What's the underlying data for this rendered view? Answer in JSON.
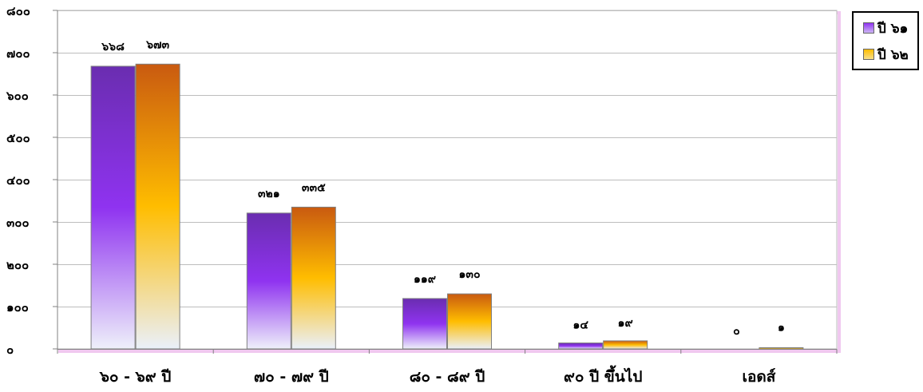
{
  "chart_data": {
    "type": "bar",
    "categories": [
      "๖๐ - ๖๙ ปี",
      "๗๐ - ๗๙ ปี",
      "๘๐ - ๘๙ ปี",
      "๙๐ ปี ขึ้นไป",
      "เอดส์"
    ],
    "series": [
      {
        "name": "ปี ๖๑",
        "values": [
          668,
          321,
          119,
          14,
          0
        ],
        "labels": [
          "๖๖๘",
          "๓๒๑",
          "๑๑๙",
          "๑๔",
          "๐"
        ],
        "color": "#8a2be2"
      },
      {
        "name": "ปี ๖๒",
        "values": [
          673,
          335,
          130,
          19,
          1
        ],
        "labels": [
          "๖๗๓",
          "๓๓๕",
          "๑๓๐",
          "๑๙",
          "๑"
        ],
        "color": "#f5a800"
      }
    ],
    "ylim": [
      0,
      800
    ],
    "yticks": [
      0,
      100,
      200,
      300,
      400,
      500,
      600,
      700,
      800
    ],
    "ytick_labels": [
      "๐",
      "๑๐๐",
      "๒๐๐",
      "๓๐๐",
      "๔๐๐",
      "๕๐๐",
      "๖๐๐",
      "๗๐๐",
      "๘๐๐"
    ],
    "grid": true,
    "legend_position": "top-right"
  }
}
